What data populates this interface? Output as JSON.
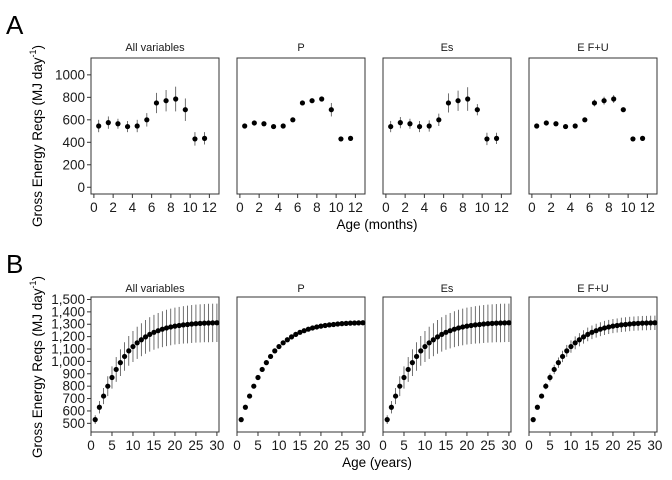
{
  "figure": {
    "panel_A_letter": "A",
    "panel_B_letter": "B"
  },
  "chart_data": [
    {
      "id": "A",
      "type": "scatter",
      "facet_labels": [
        "All variables",
        "P",
        "Es",
        "E F+U"
      ],
      "ylabel_main": "Gross Energy Reqs (MJ day",
      "ylabel_sup": "-1",
      "ylabel_end": ")",
      "xlabel": "Age (months)",
      "xlim": [
        -0.3,
        13
      ],
      "ylim": [
        -60,
        1150
      ],
      "xticks": [
        0,
        2,
        4,
        6,
        8,
        10,
        12
      ],
      "yticks": [
        0,
        200,
        400,
        600,
        800,
        1000
      ],
      "ytick_labels": [
        "0",
        "200",
        "400",
        "600",
        "800",
        "1000"
      ],
      "x": [
        0.5,
        1.5,
        2.5,
        3.5,
        4.5,
        5.5,
        6.5,
        7.5,
        8.5,
        9.5,
        10.5,
        11.5
      ],
      "series": [
        {
          "y": [
            545,
            575,
            565,
            540,
            545,
            600,
            750,
            770,
            785,
            690,
            430,
            435
          ],
          "err": [
            55,
            55,
            45,
            50,
            55,
            60,
            90,
            95,
            110,
            100,
            60,
            55
          ]
        },
        {
          "y": [
            545,
            572,
            565,
            540,
            545,
            600,
            750,
            770,
            785,
            690,
            430,
            435
          ],
          "err": [
            0,
            0,
            0,
            0,
            0,
            0,
            0,
            15,
            10,
            60,
            0,
            0
          ]
        },
        {
          "y": [
            540,
            575,
            565,
            540,
            545,
            600,
            750,
            770,
            785,
            690,
            430,
            435
          ],
          "err": [
            50,
            50,
            45,
            50,
            50,
            55,
            85,
            90,
            105,
            50,
            55,
            50
          ]
        },
        {
          "y": [
            545,
            572,
            565,
            540,
            545,
            600,
            750,
            770,
            785,
            690,
            430,
            435
          ],
          "err": [
            0,
            0,
            0,
            0,
            0,
            0,
            30,
            35,
            35,
            15,
            0,
            0
          ]
        }
      ]
    },
    {
      "id": "B",
      "type": "scatter",
      "facet_labels": [
        "All variables",
        "P",
        "Es",
        "E F+U"
      ],
      "ylabel_main": "Gross Energy Reqs (MJ day",
      "ylabel_sup": "-1",
      "ylabel_end": ")",
      "xlabel": "Age (years)",
      "xlim": [
        0,
        30.5
      ],
      "ylim": [
        430,
        1520
      ],
      "xticks": [
        0,
        5,
        10,
        15,
        20,
        25,
        30
      ],
      "yticks": [
        500,
        600,
        700,
        800,
        900,
        1000,
        1100,
        1200,
        1300,
        1400,
        1500
      ],
      "ytick_labels": [
        "500",
        "600",
        "700",
        "800",
        "900",
        "1,000",
        "1,100",
        "1,200",
        "1,300",
        "1,400",
        "1,500"
      ],
      "x": [
        1,
        2,
        3,
        4,
        5,
        6,
        7,
        8,
        9,
        10,
        11,
        12,
        13,
        14,
        15,
        16,
        17,
        18,
        19,
        20,
        21,
        22,
        23,
        24,
        25,
        26,
        27,
        28,
        29,
        30
      ],
      "series": [
        {
          "y": [
            530,
            630,
            720,
            800,
            870,
            935,
            990,
            1040,
            1085,
            1120,
            1150,
            1175,
            1198,
            1218,
            1235,
            1248,
            1260,
            1270,
            1278,
            1285,
            1290,
            1295,
            1298,
            1302,
            1305,
            1307,
            1309,
            1310,
            1311,
            1312
          ],
          "err": [
            35,
            50,
            65,
            80,
            90,
            100,
            108,
            115,
            120,
            125,
            130,
            133,
            136,
            139,
            141,
            143,
            145,
            147,
            148,
            149,
            150,
            151,
            152,
            153,
            153,
            154,
            154,
            155,
            155,
            155
          ]
        },
        {
          "y": [
            530,
            630,
            720,
            800,
            870,
            935,
            990,
            1040,
            1085,
            1120,
            1150,
            1175,
            1198,
            1218,
            1235,
            1248,
            1260,
            1270,
            1278,
            1285,
            1290,
            1295,
            1298,
            1302,
            1305,
            1307,
            1309,
            1310,
            1311,
            1312
          ],
          "err": [
            0,
            0,
            0,
            0,
            0,
            0,
            0,
            0,
            0,
            0,
            0,
            0,
            0,
            0,
            0,
            0,
            0,
            0,
            0,
            0,
            0,
            0,
            0,
            0,
            0,
            0,
            0,
            0,
            0,
            0
          ]
        },
        {
          "y": [
            530,
            630,
            720,
            800,
            870,
            935,
            990,
            1040,
            1085,
            1120,
            1150,
            1175,
            1198,
            1218,
            1235,
            1248,
            1260,
            1270,
            1278,
            1285,
            1290,
            1295,
            1298,
            1302,
            1305,
            1307,
            1309,
            1310,
            1311,
            1312
          ],
          "err": [
            35,
            50,
            65,
            80,
            90,
            100,
            108,
            115,
            120,
            125,
            130,
            133,
            136,
            139,
            141,
            143,
            145,
            147,
            148,
            149,
            150,
            151,
            152,
            153,
            153,
            154,
            154,
            155,
            155,
            155
          ]
        },
        {
          "y": [
            530,
            630,
            720,
            800,
            870,
            935,
            990,
            1040,
            1085,
            1120,
            1150,
            1175,
            1198,
            1218,
            1235,
            1248,
            1260,
            1270,
            1278,
            1285,
            1290,
            1295,
            1298,
            1302,
            1305,
            1307,
            1309,
            1310,
            1311,
            1312
          ],
          "err": [
            0,
            10,
            18,
            25,
            32,
            38,
            42,
            46,
            48,
            50,
            52,
            53,
            54,
            55,
            55,
            56,
            56,
            57,
            57,
            57,
            57,
            58,
            58,
            58,
            58,
            58,
            58,
            58,
            58,
            58
          ]
        }
      ]
    }
  ]
}
